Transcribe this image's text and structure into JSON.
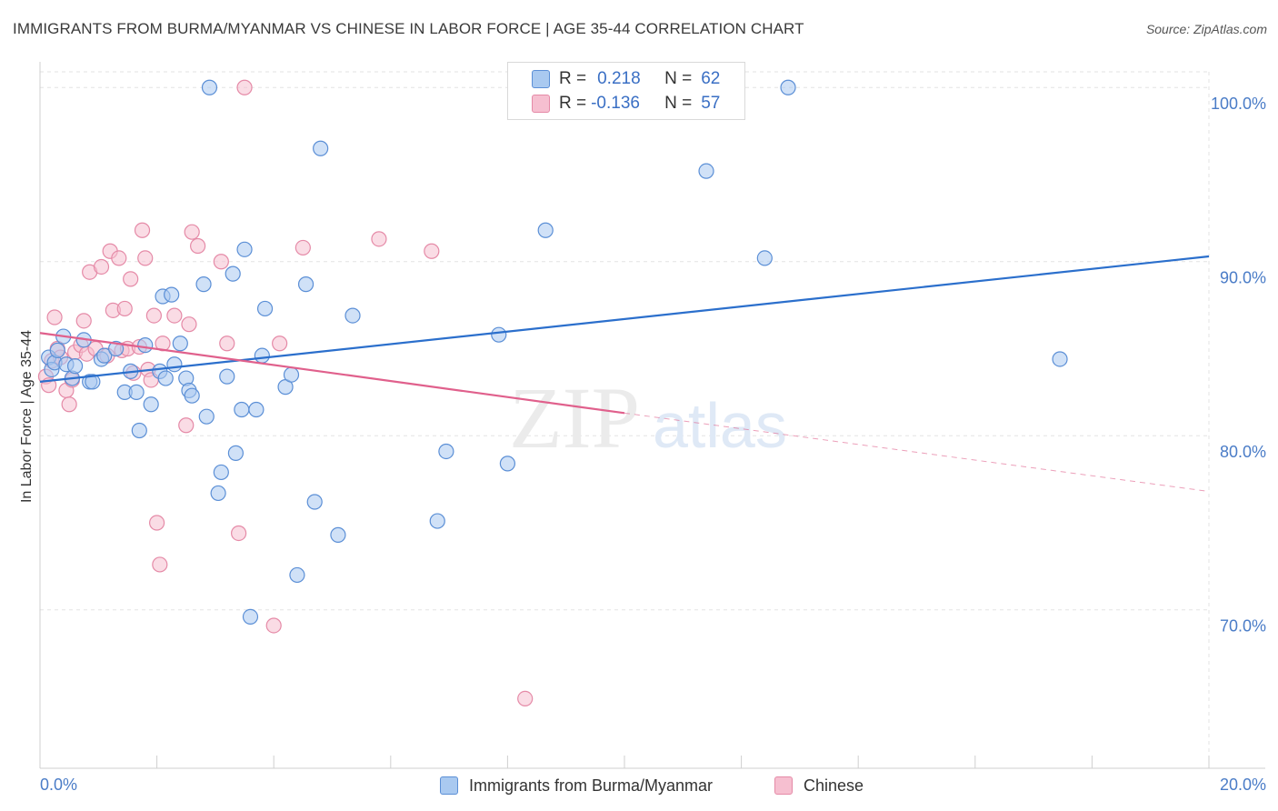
{
  "title": "IMMIGRANTS FROM BURMA/MYANMAR VS CHINESE IN LABOR FORCE | AGE 35-44 CORRELATION CHART",
  "source": "Source: ZipAtlas.com",
  "watermark": {
    "zip": "ZIP",
    "atlas": "atlas"
  },
  "legend": {
    "rows": [
      {
        "r_label": "R =",
        "r_value": "0.218",
        "n_label": "N =",
        "n_value": "62"
      },
      {
        "r_label": "R =",
        "r_value": "-0.136",
        "n_label": "N =",
        "n_value": "57"
      }
    ]
  },
  "bottom_legend": [
    "Immigrants from Burma/Myanmar",
    "Chinese"
  ],
  "colors": {
    "blue_fill": "#a9c9f0",
    "blue_stroke": "#5b8fd6",
    "blue_line": "#2b6fcc",
    "pink_fill": "#f6bfd0",
    "pink_stroke": "#e58aa7",
    "pink_line": "#e0608c",
    "grid": "#e3e3e3",
    "tick_text": "#4a7cc7"
  },
  "chart_data": {
    "type": "scatter",
    "title": "IMMIGRANTS FROM BURMA/MYANMAR VS CHINESE IN LABOR FORCE | AGE 35-44 CORRELATION CHART",
    "xlabel": "",
    "ylabel": "In Labor Force | Age 35-44",
    "xlim": [
      0,
      20
    ],
    "ylim": [
      60,
      100
    ],
    "x_tick_labels": [
      {
        "value": 0,
        "label": "0.0%"
      },
      {
        "value": 20,
        "label": "20.0%"
      }
    ],
    "y_ticks": [
      {
        "value": 100,
        "label": "100.0%"
      },
      {
        "value": 90,
        "label": "90.0%"
      },
      {
        "value": 80,
        "label": "80.0%"
      },
      {
        "value": 70,
        "label": "70.0%"
      }
    ],
    "grid": true,
    "legend_position": "top-center",
    "series": [
      {
        "name": "Immigrants from Burma/Myanmar",
        "color": "blue",
        "points": [
          [
            0.15,
            84.5
          ],
          [
            0.2,
            83.8
          ],
          [
            0.25,
            84.2
          ],
          [
            0.3,
            84.9
          ],
          [
            0.4,
            85.7
          ],
          [
            0.45,
            84.1
          ],
          [
            0.55,
            83.3
          ],
          [
            0.6,
            84.0
          ],
          [
            0.75,
            85.5
          ],
          [
            0.85,
            83.1
          ],
          [
            0.9,
            83.1
          ],
          [
            1.05,
            84.4
          ],
          [
            1.1,
            84.6
          ],
          [
            1.3,
            85.0
          ],
          [
            1.45,
            82.5
          ],
          [
            1.55,
            83.7
          ],
          [
            1.65,
            82.5
          ],
          [
            1.7,
            80.3
          ],
          [
            1.8,
            85.2
          ],
          [
            1.9,
            81.8
          ],
          [
            2.05,
            83.7
          ],
          [
            2.1,
            88.0
          ],
          [
            2.15,
            83.3
          ],
          [
            2.25,
            88.1
          ],
          [
            2.3,
            84.1
          ],
          [
            2.4,
            85.3
          ],
          [
            2.5,
            83.3
          ],
          [
            2.55,
            82.6
          ],
          [
            2.6,
            82.3
          ],
          [
            2.8,
            88.7
          ],
          [
            2.85,
            81.1
          ],
          [
            2.9,
            100.0
          ],
          [
            3.05,
            76.7
          ],
          [
            3.1,
            77.9
          ],
          [
            3.2,
            83.4
          ],
          [
            3.3,
            89.3
          ],
          [
            3.35,
            79.0
          ],
          [
            3.45,
            81.5
          ],
          [
            3.5,
            90.7
          ],
          [
            3.6,
            69.6
          ],
          [
            3.7,
            81.5
          ],
          [
            3.8,
            84.6
          ],
          [
            3.85,
            87.3
          ],
          [
            4.2,
            82.8
          ],
          [
            4.3,
            83.5
          ],
          [
            4.4,
            72.0
          ],
          [
            4.55,
            88.7
          ],
          [
            4.7,
            76.2
          ],
          [
            4.8,
            96.5
          ],
          [
            5.1,
            74.3
          ],
          [
            5.35,
            86.9
          ],
          [
            6.8,
            75.1
          ],
          [
            6.95,
            79.1
          ],
          [
            7.85,
            85.8
          ],
          [
            8.0,
            78.4
          ],
          [
            8.65,
            91.8
          ],
          [
            11.4,
            95.2
          ],
          [
            12.4,
            90.2
          ],
          [
            12.8,
            100.0
          ],
          [
            17.45,
            84.4
          ]
        ],
        "trend": {
          "x0": 0,
          "y0": 83.1,
          "x1": 20,
          "y1": 90.3
        }
      },
      {
        "name": "Chinese",
        "color": "pink",
        "points": [
          [
            0.1,
            83.4
          ],
          [
            0.15,
            82.9
          ],
          [
            0.2,
            84.3
          ],
          [
            0.25,
            86.8
          ],
          [
            0.3,
            85.0
          ],
          [
            0.35,
            84.5
          ],
          [
            0.45,
            82.6
          ],
          [
            0.5,
            81.8
          ],
          [
            0.55,
            83.2
          ],
          [
            0.6,
            84.8
          ],
          [
            0.7,
            85.2
          ],
          [
            0.75,
            86.6
          ],
          [
            0.8,
            84.7
          ],
          [
            0.85,
            89.4
          ],
          [
            0.95,
            85.0
          ],
          [
            1.05,
            89.7
          ],
          [
            1.15,
            84.6
          ],
          [
            1.2,
            90.6
          ],
          [
            1.25,
            87.2
          ],
          [
            1.35,
            90.2
          ],
          [
            1.4,
            84.9
          ],
          [
            1.45,
            87.3
          ],
          [
            1.5,
            85.0
          ],
          [
            1.55,
            89.0
          ],
          [
            1.6,
            83.6
          ],
          [
            1.7,
            85.1
          ],
          [
            1.75,
            91.8
          ],
          [
            1.8,
            90.2
          ],
          [
            1.85,
            83.8
          ],
          [
            1.9,
            83.2
          ],
          [
            1.95,
            86.9
          ],
          [
            2.0,
            75.0
          ],
          [
            2.05,
            72.6
          ],
          [
            2.1,
            85.3
          ],
          [
            2.3,
            86.9
          ],
          [
            2.5,
            80.6
          ],
          [
            2.55,
            86.4
          ],
          [
            2.6,
            91.7
          ],
          [
            2.7,
            90.9
          ],
          [
            3.1,
            90.0
          ],
          [
            3.2,
            85.3
          ],
          [
            3.4,
            74.4
          ],
          [
            3.5,
            100.0
          ],
          [
            4.0,
            69.1
          ],
          [
            4.1,
            85.3
          ],
          [
            4.5,
            90.8
          ],
          [
            5.8,
            91.3
          ],
          [
            6.7,
            90.6
          ],
          [
            8.3,
            64.9
          ]
        ],
        "trend_solid": {
          "x0": 0,
          "y0": 85.9,
          "x1": 10,
          "y1": 81.3
        },
        "trend_dashed": {
          "x0": 10,
          "y0": 81.3,
          "x1": 20,
          "y1": 76.8
        }
      }
    ]
  }
}
